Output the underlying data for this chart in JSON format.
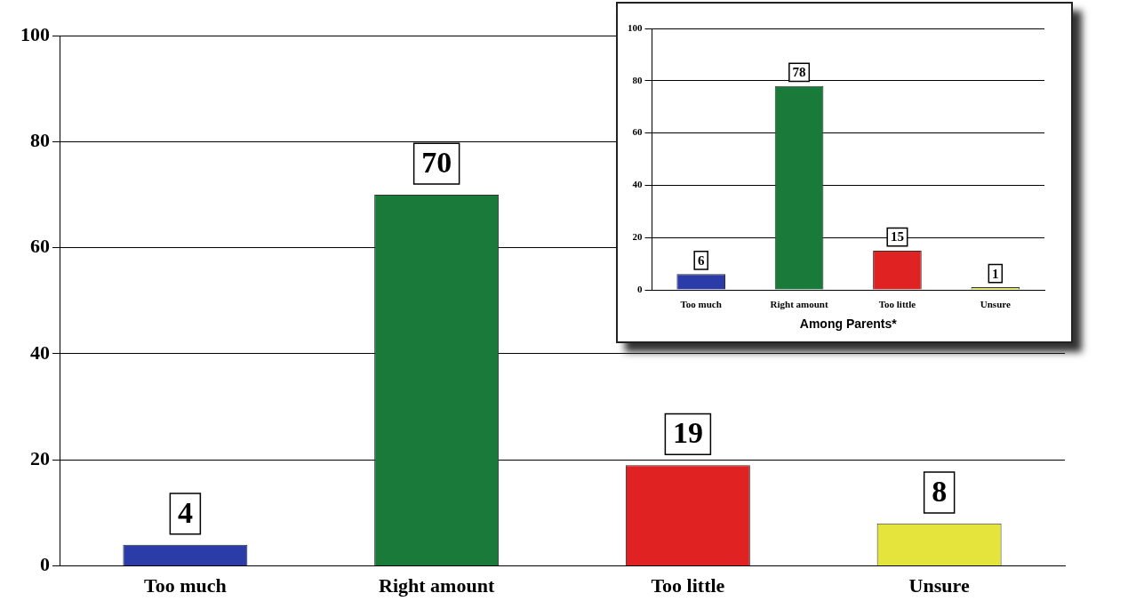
{
  "chart_data": [
    {
      "type": "bar",
      "categories": [
        "Too much",
        "Right amount",
        "Too little",
        "Unsure"
      ],
      "values": [
        4,
        70,
        19,
        8
      ],
      "colors": [
        "#2b3ca8",
        "#1a7a3a",
        "#e02222",
        "#e4e43c"
      ],
      "ylim": [
        0,
        100
      ],
      "yticks": [
        0,
        20,
        40,
        60,
        80,
        100
      ],
      "grid": "y",
      "data_labels": true
    },
    {
      "type": "bar",
      "xlabel": "Among Parents*",
      "categories": [
        "Too much",
        "Right amount",
        "Too little",
        "Unsure"
      ],
      "values": [
        6,
        78,
        15,
        1
      ],
      "colors": [
        "#2b3ca8",
        "#1a7a3a",
        "#e02222",
        "#e4e43c"
      ],
      "ylim": [
        0,
        100
      ],
      "yticks": [
        0,
        20,
        40,
        60,
        80,
        100
      ],
      "grid": "y",
      "data_labels": true
    }
  ]
}
